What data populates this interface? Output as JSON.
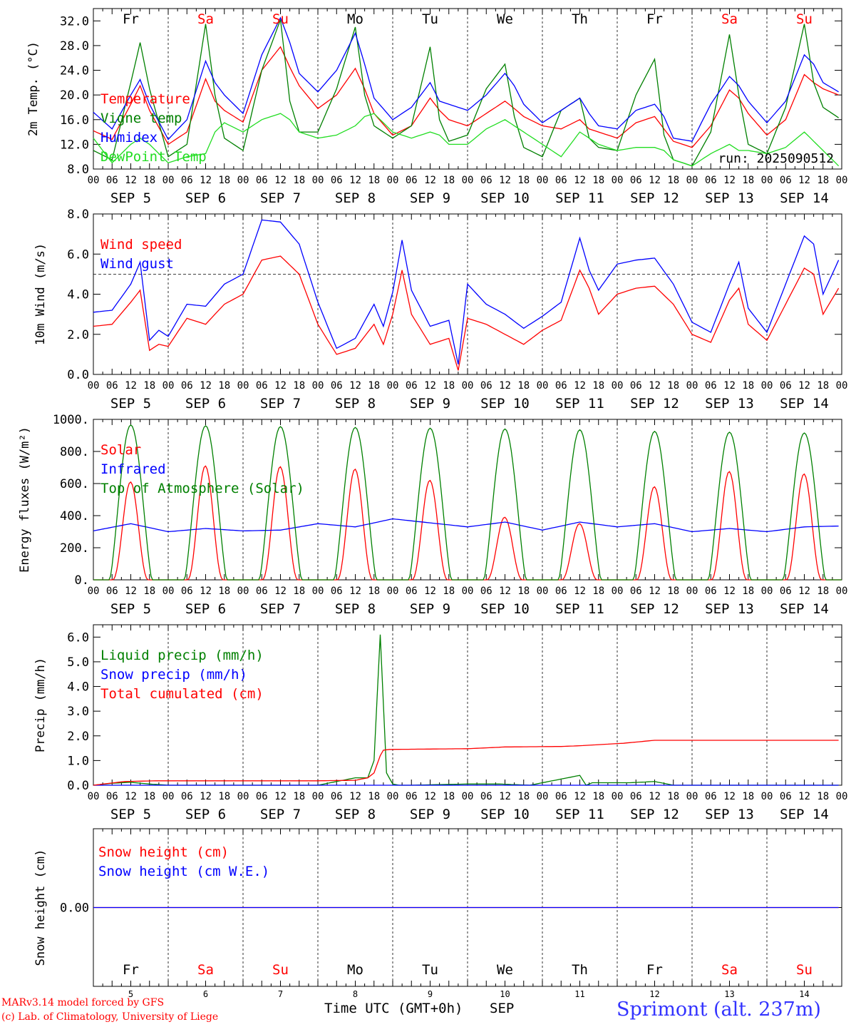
{
  "colors": {
    "red": "#ff0000",
    "green": "#008000",
    "blue": "#0000ff",
    "lightgreen": "#22dd22",
    "weekend": "#ff0000",
    "black": "#000000"
  },
  "days": [
    {
      "abbr": "Fr",
      "weekend": false,
      "date": "SEP  5",
      "num": "5"
    },
    {
      "abbr": "Sa",
      "weekend": true,
      "date": "SEP  6",
      "num": "6"
    },
    {
      "abbr": "Su",
      "weekend": true,
      "date": "SEP  7",
      "num": "7"
    },
    {
      "abbr": "Mo",
      "weekend": false,
      "date": "SEP  8",
      "num": "8"
    },
    {
      "abbr": "Tu",
      "weekend": false,
      "date": "SEP  9",
      "num": "9"
    },
    {
      "abbr": "We",
      "weekend": false,
      "date": "SEP 10",
      "num": "10"
    },
    {
      "abbr": "Th",
      "weekend": false,
      "date": "SEP 11",
      "num": "11"
    },
    {
      "abbr": "Fr",
      "weekend": false,
      "date": "SEP 12",
      "num": "12"
    },
    {
      "abbr": "Sa",
      "weekend": true,
      "date": "SEP 13",
      "num": "13"
    },
    {
      "abbr": "Su",
      "weekend": true,
      "date": "SEP 14",
      "num": "14"
    }
  ],
  "hour_ticks": [
    "00",
    "06",
    "12",
    "18"
  ],
  "footer": {
    "credit1": "MARv3.14 model forced by GFS",
    "credit2": "(c) Lab. of Climatology, University of Liege",
    "xlabel": "Time UTC (GMT+0h)",
    "month": "SEP",
    "station": "Sprimont (alt. 237m)"
  },
  "chart_data": [
    {
      "type": "line",
      "ylabel": "2m Temp. (°C)",
      "ylim": [
        8,
        34
      ],
      "yticks": [
        8,
        12,
        16,
        20,
        24,
        28,
        32
      ],
      "ytick_labels": [
        "8.0",
        "12.0",
        "16.0",
        "20.0",
        "24.0",
        "28.0",
        "32.0"
      ],
      "annotation": "run: 2025090512",
      "x_hours": [
        0,
        6,
        12,
        15,
        18,
        24,
        30,
        36,
        39,
        42,
        48,
        54,
        60,
        63,
        66,
        72,
        78,
        84,
        87,
        90,
        96,
        102,
        108,
        111,
        114,
        120,
        126,
        132,
        135,
        138,
        144,
        150,
        156,
        159,
        162,
        168,
        174,
        180,
        183,
        186,
        192,
        198,
        204,
        207,
        210,
        216,
        222,
        228,
        231,
        234,
        239
      ],
      "series": [
        {
          "name": "Temperature",
          "color": "red",
          "values": [
            14.2,
            12.8,
            18.5,
            21.5,
            17.5,
            12.0,
            14.0,
            22.6,
            19.0,
            17.5,
            15.6,
            24.0,
            27.8,
            24.5,
            21.5,
            17.8,
            20.0,
            24.3,
            21.0,
            17.0,
            13.5,
            15.0,
            19.5,
            17.5,
            16.0,
            15.0,
            17.0,
            19.0,
            17.8,
            16.5,
            15.0,
            14.5,
            16.0,
            14.5,
            14.0,
            13.0,
            15.5,
            16.5,
            14.5,
            12.5,
            11.5,
            15.0,
            20.8,
            19.5,
            17.0,
            13.5,
            16.0,
            23.3,
            22.0,
            21.0,
            20.0
          ]
        },
        {
          "name": "Vigne temp",
          "color": "green",
          "values": [
            11.0,
            9.5,
            22.0,
            28.5,
            21.0,
            10.0,
            12.0,
            31.5,
            20.0,
            13.0,
            11.0,
            24.0,
            32.2,
            19.0,
            14.0,
            14.0,
            21.0,
            31.0,
            20.0,
            15.0,
            13.0,
            15.0,
            27.8,
            16.0,
            12.5,
            13.5,
            21.0,
            25.0,
            16.5,
            11.5,
            10.0,
            17.5,
            19.5,
            13.0,
            11.5,
            11.0,
            20.0,
            25.8,
            13.5,
            9.5,
            8.5,
            14.0,
            29.8,
            20.0,
            12.0,
            10.5,
            18.0,
            31.5,
            22.0,
            18.0,
            16.3
          ]
        },
        {
          "name": "Humidex",
          "color": "blue",
          "values": [
            17.2,
            14.5,
            20.0,
            22.5,
            18.5,
            12.8,
            16.0,
            25.5,
            22.0,
            20.0,
            17.0,
            26.5,
            32.5,
            28.5,
            23.5,
            20.5,
            24.0,
            30.0,
            25.0,
            19.5,
            16.0,
            18.0,
            22.0,
            19.0,
            18.5,
            17.5,
            20.0,
            23.5,
            21.5,
            18.5,
            15.5,
            17.5,
            19.5,
            17.0,
            15.0,
            14.5,
            17.5,
            18.5,
            16.5,
            13.0,
            12.5,
            18.5,
            23.0,
            21.5,
            19.0,
            15.5,
            19.0,
            26.5,
            25.0,
            22.0,
            20.5
          ]
        },
        {
          "name": "DewPoint Temp",
          "color": "lightgreen",
          "values": [
            13.0,
            9.0,
            12.0,
            13.0,
            12.0,
            9.0,
            10.0,
            10.5,
            14.0,
            15.5,
            14.0,
            16.0,
            17.0,
            16.0,
            14.0,
            13.0,
            13.5,
            15.0,
            16.5,
            17.0,
            14.0,
            13.0,
            14.0,
            13.5,
            12.0,
            12.0,
            14.5,
            16.0,
            15.0,
            14.0,
            12.0,
            10.0,
            14.0,
            13.0,
            12.0,
            11.0,
            11.5,
            11.5,
            11.0,
            9.5,
            8.5,
            10.5,
            12.0,
            11.0,
            11.0,
            10.5,
            11.5,
            14.0,
            12.5,
            11.0,
            8.5
          ]
        }
      ]
    },
    {
      "type": "line",
      "ylabel": "10m Wind (m/s)",
      "ylim": [
        0,
        8
      ],
      "yticks": [
        0,
        2,
        4,
        6,
        8
      ],
      "ytick_labels": [
        "0.0",
        "2.0",
        "4.0",
        "6.0",
        "8.0"
      ],
      "reference_line": 5.0,
      "x_hours": [
        0,
        6,
        12,
        15,
        18,
        21,
        24,
        30,
        36,
        42,
        48,
        54,
        60,
        66,
        72,
        78,
        84,
        90,
        93,
        96,
        99,
        102,
        108,
        114,
        117,
        120,
        126,
        132,
        138,
        144,
        150,
        156,
        159,
        162,
        168,
        174,
        180,
        186,
        192,
        198,
        204,
        207,
        210,
        216,
        222,
        228,
        231,
        234,
        239
      ],
      "series": [
        {
          "name": "Wind speed",
          "color": "red",
          "values": [
            2.4,
            2.5,
            3.6,
            4.2,
            1.2,
            1.5,
            1.4,
            2.8,
            2.5,
            3.5,
            4.0,
            5.7,
            5.9,
            5.0,
            2.5,
            1.0,
            1.3,
            2.5,
            1.5,
            3.0,
            5.2,
            3.0,
            1.5,
            1.8,
            0.2,
            2.8,
            2.5,
            2.0,
            1.5,
            2.2,
            2.7,
            5.2,
            4.3,
            3.0,
            4.0,
            4.3,
            4.4,
            3.5,
            2.0,
            1.6,
            3.7,
            4.3,
            2.5,
            1.7,
            3.5,
            5.3,
            5.0,
            3.0,
            4.3
          ]
        },
        {
          "name": "Wind gust",
          "color": "blue",
          "values": [
            3.1,
            3.2,
            4.5,
            5.6,
            1.7,
            2.2,
            1.9,
            3.5,
            3.4,
            4.5,
            5.0,
            7.7,
            7.6,
            6.5,
            3.6,
            1.3,
            1.8,
            3.5,
            2.4,
            4.1,
            6.7,
            4.2,
            2.4,
            2.7,
            0.5,
            4.5,
            3.5,
            3.0,
            2.3,
            2.9,
            3.6,
            6.8,
            5.2,
            4.2,
            5.5,
            5.7,
            5.8,
            4.5,
            2.6,
            2.1,
            4.5,
            5.6,
            3.3,
            2.1,
            4.5,
            6.9,
            6.5,
            4.0,
            5.7
          ]
        }
      ]
    },
    {
      "type": "line",
      "ylabel": "Energy fluxes (W/m²)",
      "ylim": [
        0,
        1000
      ],
      "yticks": [
        0,
        200,
        400,
        600,
        800,
        1000
      ],
      "ytick_labels": [
        "0.",
        "200.",
        "400.",
        "600.",
        "800.",
        "1000."
      ],
      "series": [
        {
          "name": "Solar",
          "color": "red",
          "peaks": [
            610,
            710,
            705,
            690,
            620,
            390,
            350,
            580,
            675,
            660
          ]
        },
        {
          "name": "Infrared",
          "color": "blue",
          "x_hours": [
            0,
            12,
            24,
            36,
            48,
            60,
            72,
            84,
            96,
            108,
            120,
            132,
            144,
            156,
            168,
            180,
            192,
            204,
            216,
            228,
            239
          ],
          "values": [
            305,
            350,
            300,
            320,
            305,
            310,
            350,
            330,
            380,
            355,
            330,
            360,
            310,
            360,
            330,
            350,
            300,
            320,
            300,
            330,
            335
          ]
        },
        {
          "name": "Top of Atmosphere (Solar)",
          "color": "green",
          "peaks": [
            965,
            960,
            955,
            950,
            945,
            940,
            935,
            925,
            920,
            915
          ]
        }
      ]
    },
    {
      "type": "line",
      "ylabel": "Precip (mm/h)",
      "ylim": [
        0,
        6.5
      ],
      "yticks": [
        0,
        1,
        2,
        3,
        4,
        5,
        6
      ],
      "ytick_labels": [
        "0.0",
        "1.0",
        "2.0",
        "3.0",
        "4.0",
        "5.0",
        "6.0"
      ],
      "series": [
        {
          "name": "Liquid precip (mm/h)",
          "color": "green",
          "x_hours": [
            0,
            6,
            12,
            18,
            24,
            72,
            80,
            84,
            88,
            90,
            92,
            94,
            96,
            98,
            102,
            120,
            130,
            140,
            156,
            158,
            160,
            172,
            180,
            186,
            192,
            239
          ],
          "values": [
            0,
            0.08,
            0.12,
            0.05,
            0,
            0,
            0.2,
            0.3,
            0.3,
            1.0,
            6.1,
            0.5,
            0.05,
            0,
            0,
            0.05,
            0.05,
            0,
            0.4,
            0,
            0.1,
            0.1,
            0.15,
            0,
            0,
            0
          ]
        },
        {
          "name": "Snow precip (mm/h)",
          "color": "blue",
          "x_hours": [
            0,
            239
          ],
          "values": [
            0,
            0
          ]
        },
        {
          "name": "Total cumulated (cm)",
          "color": "red",
          "x_hours": [
            0,
            10,
            20,
            72,
            84,
            88,
            90,
            92,
            93,
            95,
            120,
            132,
            150,
            156,
            170,
            180,
            239
          ],
          "values": [
            0,
            0.15,
            0.18,
            0.18,
            0.2,
            0.3,
            0.5,
            1.2,
            1.42,
            1.45,
            1.48,
            1.55,
            1.57,
            1.6,
            1.7,
            1.82,
            1.82
          ]
        }
      ]
    },
    {
      "type": "line",
      "ylabel": "Snow height (cm)",
      "ylim": [
        -1,
        1
      ],
      "yticks": [
        0
      ],
      "ytick_labels": [
        "0.00"
      ],
      "series": [
        {
          "name": "Snow height (cm)",
          "color": "red",
          "x_hours": [
            0,
            239
          ],
          "values": [
            0,
            0
          ]
        },
        {
          "name": "Snow height (cm W.E.)",
          "color": "blue",
          "x_hours": [
            0,
            239
          ],
          "values": [
            0,
            0
          ]
        }
      ]
    }
  ]
}
